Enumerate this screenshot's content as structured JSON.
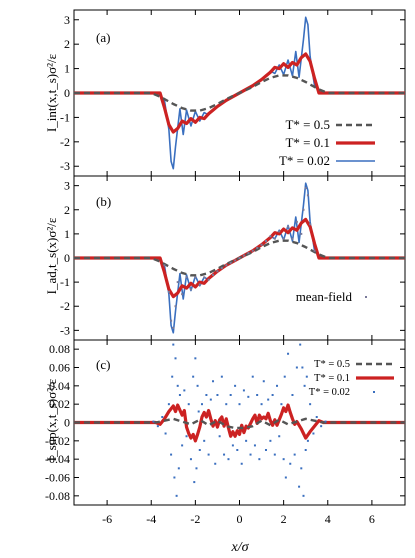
{
  "x_axis": {
    "label": "x/σ",
    "range": [
      -7.5,
      7.5
    ],
    "ticks": [
      -6,
      -4,
      -2,
      0,
      2,
      4,
      6
    ]
  },
  "colors": {
    "T05": "#555555",
    "T01": "#cc2222",
    "T002": "#3a6fbf",
    "meanfield": "#7a7a9a",
    "axis": "#000000"
  },
  "chart_data": [
    {
      "type": "line",
      "panel_label": "(a)",
      "ylabel": "I_int(x,t_s)σ²/ε",
      "ylim": [
        -3.4,
        3.4
      ],
      "yticks": [
        -3,
        -2,
        -1,
        0,
        1,
        2,
        3
      ],
      "legend": {
        "position": "bottom-right",
        "entries": [
          "T* = 0.5",
          "T* = 0.1",
          "T* = 0.02"
        ]
      },
      "series": [
        {
          "name": "T* = 0.5",
          "key": "T05",
          "x": [
            -7.5,
            -4.0,
            -3.6,
            -3.2,
            -3.0,
            -2.6,
            -2.2,
            -1.8,
            -1.4,
            -1.0,
            -0.6,
            -0.2,
            0.2,
            0.6,
            1.0,
            1.4,
            1.8,
            2.2,
            2.6,
            3.0,
            3.2,
            3.6,
            4.0,
            7.5
          ],
          "y": [
            0,
            0,
            -0.15,
            -0.35,
            -0.45,
            -0.62,
            -0.72,
            -0.72,
            -0.62,
            -0.45,
            -0.25,
            -0.08,
            0.08,
            0.25,
            0.45,
            0.62,
            0.72,
            0.72,
            0.62,
            0.45,
            0.35,
            0.15,
            0,
            0
          ]
        },
        {
          "name": "T* = 0.1",
          "key": "T01",
          "x": [
            -7.5,
            -3.6,
            -3.4,
            -3.2,
            -3.0,
            -2.8,
            -2.6,
            -2.4,
            -2.2,
            -2.0,
            -1.8,
            -1.6,
            -1.4,
            -1.2,
            -1.0,
            -0.6,
            -0.2,
            0.2,
            0.6,
            1.0,
            1.2,
            1.4,
            1.6,
            1.8,
            2.0,
            2.2,
            2.4,
            2.6,
            2.8,
            3.0,
            3.2,
            3.4,
            3.6,
            7.5
          ],
          "y": [
            0,
            0,
            -0.6,
            -1.3,
            -1.6,
            -1.45,
            -1.15,
            -1.25,
            -1.05,
            -1.2,
            -1.0,
            -1.05,
            -0.85,
            -0.7,
            -0.55,
            -0.3,
            -0.1,
            0.1,
            0.3,
            0.55,
            0.7,
            0.85,
            1.05,
            1.0,
            1.2,
            1.05,
            1.25,
            1.15,
            1.45,
            1.6,
            1.3,
            0.6,
            0,
            0
          ]
        },
        {
          "name": "T* = 0.02",
          "key": "T002",
          "x": [
            -7.5,
            -3.7,
            -3.4,
            -3.2,
            -3.1,
            -3.0,
            -2.9,
            -2.7,
            -2.55,
            -2.4,
            -2.2,
            -2.0,
            -1.8,
            -1.6,
            -1.4,
            -1.2,
            -1.0,
            -0.6,
            -0.2,
            0.2,
            0.6,
            1.0,
            1.2,
            1.4,
            1.6,
            1.8,
            2.0,
            2.2,
            2.4,
            2.55,
            2.7,
            2.9,
            3.0,
            3.1,
            3.2,
            3.4,
            3.7,
            7.5
          ],
          "y": [
            0,
            0,
            -0.3,
            -1.5,
            -2.8,
            -3.1,
            -2.2,
            -0.65,
            -1.7,
            -0.7,
            -1.35,
            -0.75,
            -1.15,
            -0.8,
            -0.9,
            -0.7,
            -0.55,
            -0.3,
            -0.1,
            0.1,
            0.3,
            0.55,
            0.7,
            0.9,
            0.8,
            1.15,
            0.75,
            1.35,
            0.7,
            1.7,
            0.65,
            2.2,
            3.1,
            2.8,
            1.5,
            0.3,
            0,
            0
          ]
        }
      ]
    },
    {
      "type": "line",
      "panel_label": "(b)",
      "ylabel": "I_ad,t_s(x)σ²/ε",
      "ylim": [
        -3.4,
        3.4
      ],
      "yticks": [
        -3,
        -2,
        -1,
        0,
        1,
        2,
        3
      ],
      "legend": {
        "position": "bottom-right",
        "entries": [
          "mean-field"
        ]
      },
      "series": [
        {
          "name": "T* = 0.5",
          "key": "T05",
          "x": [
            -7.5,
            -4.0,
            -3.6,
            -3.2,
            -3.0,
            -2.6,
            -2.2,
            -1.8,
            -1.4,
            -1.0,
            -0.6,
            -0.2,
            0.2,
            0.6,
            1.0,
            1.4,
            1.8,
            2.2,
            2.6,
            3.0,
            3.2,
            3.6,
            4.0,
            7.5
          ],
          "y": [
            0,
            0,
            -0.15,
            -0.35,
            -0.45,
            -0.62,
            -0.72,
            -0.72,
            -0.62,
            -0.45,
            -0.25,
            -0.08,
            0.08,
            0.25,
            0.45,
            0.62,
            0.72,
            0.72,
            0.62,
            0.45,
            0.35,
            0.15,
            0,
            0
          ]
        },
        {
          "name": "T* = 0.1",
          "key": "T01",
          "x": [
            -7.5,
            -3.6,
            -3.4,
            -3.2,
            -3.0,
            -2.8,
            -2.6,
            -2.4,
            -2.2,
            -2.0,
            -1.8,
            -1.6,
            -1.4,
            -1.2,
            -1.0,
            -0.6,
            -0.2,
            0.2,
            0.6,
            1.0,
            1.2,
            1.4,
            1.6,
            1.8,
            2.0,
            2.2,
            2.4,
            2.6,
            2.8,
            3.0,
            3.2,
            3.4,
            3.6,
            7.5
          ],
          "y": [
            0,
            0,
            -0.6,
            -1.3,
            -1.6,
            -1.45,
            -1.15,
            -1.25,
            -1.05,
            -1.2,
            -1.0,
            -1.05,
            -0.85,
            -0.7,
            -0.55,
            -0.3,
            -0.1,
            0.1,
            0.3,
            0.55,
            0.7,
            0.85,
            1.05,
            1.0,
            1.2,
            1.05,
            1.25,
            1.15,
            1.45,
            1.6,
            1.3,
            0.6,
            0,
            0
          ]
        },
        {
          "name": "T* = 0.02",
          "key": "T002",
          "x": [
            -7.5,
            -3.7,
            -3.4,
            -3.2,
            -3.1,
            -3.0,
            -2.9,
            -2.7,
            -2.55,
            -2.4,
            -2.2,
            -2.0,
            -1.8,
            -1.6,
            -1.4,
            -1.2,
            -1.0,
            -0.6,
            -0.2,
            0.2,
            0.6,
            1.0,
            1.2,
            1.4,
            1.6,
            1.8,
            2.0,
            2.2,
            2.4,
            2.55,
            2.7,
            2.9,
            3.0,
            3.1,
            3.2,
            3.4,
            3.7,
            7.5
          ],
          "y": [
            0,
            0,
            -0.3,
            -1.5,
            -2.8,
            -3.1,
            -2.2,
            -0.65,
            -1.7,
            -0.7,
            -1.35,
            -0.75,
            -1.15,
            -0.8,
            -0.9,
            -0.7,
            -0.55,
            -0.3,
            -0.1,
            0.1,
            0.3,
            0.55,
            0.7,
            0.9,
            0.8,
            1.15,
            0.75,
            1.35,
            0.7,
            1.7,
            0.65,
            2.2,
            3.1,
            2.8,
            1.5,
            0.3,
            0,
            0
          ]
        },
        {
          "name": "mean-field",
          "key": "meanfield",
          "style": "dots",
          "x": [
            -3.4,
            -3.2,
            -3.1,
            -3.0,
            -2.9,
            -2.8,
            -2.6,
            -2.4,
            -2.2,
            -2.0,
            -1.8,
            -1.6,
            -1.4,
            -1.2,
            -1.0,
            -0.8,
            -0.6,
            -0.4,
            -0.2,
            0.0,
            0.2,
            0.4,
            0.6,
            0.8,
            1.0,
            1.2,
            1.4,
            1.6,
            1.8,
            2.0,
            2.2,
            2.4,
            2.6,
            2.8,
            2.9,
            3.0,
            3.1,
            3.2,
            3.4
          ],
          "y": [
            -0.3,
            -1.4,
            -2.6,
            -2.9,
            -2.0,
            -1.0,
            -1.5,
            -0.8,
            -1.3,
            -0.8,
            -1.1,
            -0.8,
            -0.9,
            -0.7,
            -0.55,
            -0.42,
            -0.3,
            -0.2,
            -0.1,
            0.0,
            0.1,
            0.2,
            0.3,
            0.42,
            0.55,
            0.7,
            0.9,
            0.8,
            1.1,
            0.8,
            1.3,
            0.8,
            1.5,
            1.0,
            2.0,
            2.9,
            2.6,
            1.4,
            0.3
          ]
        }
      ]
    },
    {
      "type": "line",
      "panel_label": "(c)",
      "ylabel": "I_sup(x,t_s)σ²/ε",
      "ylim": [
        -0.09,
        0.09
      ],
      "yticks": [
        -0.08,
        -0.06,
        -0.04,
        -0.02,
        0,
        0.02,
        0.04,
        0.06,
        0.08
      ],
      "ytick_labels": [
        "-0.08",
        "-0.06",
        "-0.04",
        "-0.02",
        "0",
        "0.02",
        "0.04",
        "0.06",
        "0.08"
      ],
      "legend": {
        "position": "top-right",
        "entries": [
          "T* = 0.5",
          "T* = 0.1",
          "T* = 0.02"
        ]
      },
      "series": [
        {
          "name": "T* = 0.5",
          "key": "T05",
          "x": [
            -7.5,
            -3.8,
            -3.4,
            -3.0,
            -2.6,
            -2.2,
            -1.8,
            -1.4,
            -1.0,
            -0.6,
            -0.2,
            0.2,
            0.6,
            1.0,
            1.4,
            1.8,
            2.2,
            2.6,
            3.0,
            3.4,
            3.8,
            7.5
          ],
          "y": [
            0,
            0,
            0.002,
            0.004,
            0.001,
            -0.002,
            0.003,
            -0.003,
            0.002,
            -0.004,
            -0.006,
            -0.006,
            -0.004,
            0.002,
            -0.003,
            0.003,
            -0.002,
            0.001,
            0.004,
            0.002,
            0,
            0
          ]
        },
        {
          "name": "T* = 0.1",
          "key": "T01",
          "x": [
            -7.5,
            -3.8,
            -3.6,
            -3.4,
            -3.2,
            -3.0,
            -2.9,
            -2.8,
            -2.6,
            -2.5,
            -2.4,
            -2.3,
            -2.2,
            -2.1,
            -2.0,
            -1.9,
            -1.8,
            -1.7,
            -1.6,
            -1.5,
            -1.4,
            -1.3,
            -1.2,
            -1.1,
            -1.0,
            -0.9,
            -0.8,
            -0.7,
            -0.6,
            -0.5,
            -0.4,
            -0.3,
            -0.2,
            -0.1,
            0.0,
            0.1,
            0.2,
            0.3,
            0.4,
            0.5,
            0.6,
            0.7,
            0.8,
            0.9,
            1.0,
            1.1,
            1.2,
            1.3,
            1.4,
            1.5,
            1.6,
            1.7,
            1.8,
            1.9,
            2.0,
            2.1,
            2.2,
            2.3,
            2.4,
            2.5,
            2.6,
            2.8,
            2.9,
            3.0,
            3.2,
            3.4,
            3.6,
            3.8,
            7.5
          ],
          "y": [
            0,
            0,
            -0.002,
            0.004,
            0.012,
            0.018,
            0.012,
            0.019,
            0.008,
            0.013,
            -0.005,
            -0.012,
            -0.017,
            -0.013,
            -0.02,
            -0.013,
            -0.005,
            0.006,
            0.011,
            0.006,
            0.013,
            0.004,
            -0.004,
            0.002,
            -0.005,
            0.003,
            0.006,
            -0.004,
            0.004,
            -0.006,
            -0.015,
            -0.01,
            -0.015,
            -0.009,
            -0.013,
            -0.003,
            -0.011,
            -0.004,
            -0.006,
            -0.001,
            0.004,
            0.008,
            -0.001,
            0.008,
            0.004,
            0.006,
            0.004,
            0.01,
            0.002,
            -0.003,
            0.003,
            -0.003,
            0.003,
            0.009,
            0.016,
            0.012,
            0.019,
            0.011,
            0.004,
            -0.002,
            0.001,
            -0.007,
            -0.012,
            -0.017,
            -0.01,
            -0.004,
            0.002,
            0,
            0
          ]
        },
        {
          "name": "T* = 0.02",
          "key": "T002",
          "style": "dots",
          "x": [
            -3.9,
            -3.7,
            -3.5,
            -3.35,
            -3.2,
            -3.1,
            -3.05,
            -3.0,
            -2.95,
            -2.9,
            -2.85,
            -2.8,
            -2.75,
            -2.7,
            -2.6,
            -2.5,
            -2.4,
            -2.3,
            -2.2,
            -2.1,
            -2.05,
            -2.0,
            -1.95,
            -1.9,
            -1.85,
            -1.8,
            -1.7,
            -1.6,
            -1.5,
            -1.4,
            -1.3,
            -1.2,
            -1.1,
            -1.0,
            -0.9,
            -0.8,
            -0.7,
            -0.6,
            -0.5,
            -0.4,
            -0.3,
            -0.2,
            -0.1,
            0.0,
            0.1,
            0.2,
            0.3,
            0.4,
            0.5,
            0.6,
            0.7,
            0.8,
            0.9,
            1.0,
            1.1,
            1.2,
            1.3,
            1.4,
            1.5,
            1.6,
            1.7,
            1.8,
            1.9,
            2.0,
            2.05,
            2.1,
            2.2,
            2.3,
            2.4,
            2.5,
            2.6,
            2.7,
            2.75,
            2.8,
            2.85,
            2.9,
            2.95,
            3.0,
            3.05,
            3.1,
            3.2,
            3.35,
            3.5,
            3.7,
            3.9
          ],
          "y": [
            0.001,
            -0.004,
            0.006,
            -0.012,
            0.02,
            -0.035,
            0.05,
            0.085,
            -0.06,
            0.07,
            -0.08,
            0.04,
            -0.05,
            0.03,
            -0.025,
            0.035,
            -0.015,
            0.02,
            -0.04,
            0.05,
            -0.065,
            0.07,
            -0.05,
            0.04,
            0.012,
            -0.03,
            0.02,
            -0.02,
            0.03,
            -0.035,
            0.025,
            0.045,
            -0.045,
            0.03,
            -0.015,
            0.05,
            -0.035,
            0.02,
            -0.04,
            0.03,
            -0.025,
            0.04,
            -0.03,
            0.02,
            -0.045,
            0.035,
            -0.02,
            0.028,
            -0.035,
            0.05,
            -0.025,
            0.03,
            -0.04,
            0.02,
            0.045,
            -0.03,
            0.025,
            -0.02,
            0.03,
            -0.035,
            0.04,
            -0.015,
            0.02,
            -0.04,
            0.05,
            -0.06,
            0.075,
            -0.045,
            0.03,
            -0.035,
            0.06,
            -0.07,
            0.085,
            -0.05,
            0.06,
            -0.08,
            0.04,
            -0.03,
            0.05,
            -0.02,
            0.02,
            -0.012,
            0.006,
            -0.004,
            0.001
          ]
        }
      ]
    }
  ]
}
